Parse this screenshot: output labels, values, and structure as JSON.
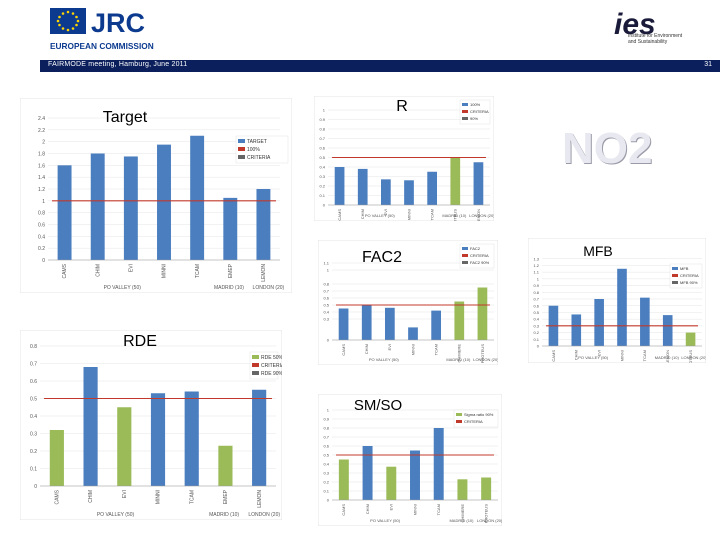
{
  "header": {
    "org_name": "EUROPEAN COMMISSION",
    "jrc": "JRC",
    "ies_mark": "ies",
    "ies_subtitle": "Institute for Environment and Sustainability",
    "band_left": "FAIRMODE meeting, Hamburg, June 2011",
    "page_number": "31"
  },
  "overlay": {
    "pollutant": "NO2"
  },
  "chart_data": [
    {
      "id": "target",
      "type": "bar",
      "title": "Target",
      "categories": [
        "CAMS",
        "CHIM",
        "EVI",
        "MINNI",
        "TCAM",
        "EMEP",
        "LEMON"
      ],
      "values": [
        1.6,
        1.8,
        1.75,
        1.95,
        2.1,
        1.05,
        1.2
      ],
      "bar_colors": [
        "#4a7ebf",
        "#4a7ebf",
        "#4a7ebf",
        "#4a7ebf",
        "#4a7ebf",
        "#4a7ebf",
        "#4a7ebf"
      ],
      "criteria": 1.0,
      "legend": [
        "TARGET",
        "100%",
        "CRITERIA"
      ],
      "yticks": [
        "0",
        "0.2",
        "0.4",
        "0.6",
        "0.8",
        "1",
        "1.2",
        "1.4",
        "1.6",
        "1.8",
        "2",
        "2.2",
        "2.4"
      ],
      "group_labels": [
        "PO VALLEY (50)",
        "MADRID (10)",
        "LONDON (20)"
      ],
      "ylim": [
        0,
        2.4
      ]
    },
    {
      "id": "r",
      "type": "bar",
      "title": "R",
      "categories": [
        "CAMS",
        "CHIM",
        "EVI",
        "MINNI",
        "TCAM",
        "PROTEUS",
        "LEMON"
      ],
      "values": [
        0.4,
        0.38,
        0.27,
        0.26,
        0.35,
        0.5,
        0.45
      ],
      "bar_colors": [
        "#4a7ebf",
        "#4a7ebf",
        "#4a7ebf",
        "#4a7ebf",
        "#4a7ebf",
        "#9bbb59",
        "#4a7ebf"
      ],
      "criteria": 0.5,
      "legend": [
        "100%",
        "CRITERIA",
        "90%"
      ],
      "yticks": [
        "0",
        "0.1",
        "0.2",
        "0.3",
        "0.4",
        "0.5",
        "0.6",
        "0.7",
        "0.8",
        "0.9",
        "1"
      ],
      "group_labels": [
        "PO VALLEY (50)",
        "MADRID (10)",
        "LONDON (20)"
      ],
      "ylim": [
        0,
        1
      ]
    },
    {
      "id": "fac2",
      "type": "bar",
      "title": "FAC2",
      "categories": [
        "CAMS",
        "CHIM",
        "EVI",
        "MINNI",
        "TCAM",
        "CHIMERE",
        "PROTEUS"
      ],
      "values": [
        0.45,
        0.5,
        0.46,
        0.18,
        0.42,
        0.55,
        0.75
      ],
      "bar_colors": [
        "#4a7ebf",
        "#4a7ebf",
        "#4a7ebf",
        "#4a7ebf",
        "#4a7ebf",
        "#9bbb59",
        "#9bbb59"
      ],
      "criteria": 0.5,
      "legend": [
        "FAC2",
        "CRITERIA",
        "FAC2 90%"
      ],
      "yticks": [
        "0",
        "0.3",
        "0.4",
        "0.5",
        "0.6",
        "0.7",
        "0.8",
        "1",
        "1.1"
      ],
      "group_labels": [
        "PO VALLEY (50)",
        "MADRID (10)",
        "LONDON (20)"
      ],
      "ylim": [
        0,
        1.2
      ]
    },
    {
      "id": "mfb",
      "type": "bar",
      "title": "MFB",
      "categories": [
        "CAMS",
        "CHIM",
        "EVI",
        "MINNI",
        "TCAM",
        "LEMON",
        "PROTEUS"
      ],
      "values": [
        0.6,
        0.47,
        0.7,
        1.15,
        0.72,
        0.46,
        0.2
      ],
      "bar_colors": [
        "#4a7ebf",
        "#4a7ebf",
        "#4a7ebf",
        "#4a7ebf",
        "#4a7ebf",
        "#4a7ebf",
        "#9bbb59"
      ],
      "criteria": 0.3,
      "legend": [
        "MFB",
        "CRITERIA",
        "MFB 90%"
      ],
      "yticks": [
        "0",
        "0.1",
        "0.2",
        "0.3",
        "0.4",
        "0.5",
        "0.6",
        "0.7",
        "0.8",
        "0.9",
        "1",
        "1.1",
        "1.2",
        "1.3"
      ],
      "group_labels": [
        "PO VALLEY (50)",
        "MADRID (10)",
        "LONDON (20)"
      ],
      "ylim": [
        0,
        1.4
      ]
    },
    {
      "id": "rde",
      "type": "bar",
      "title": "RDE",
      "categories": [
        "CAMS",
        "CHIM",
        "EVI",
        "MINNI",
        "TCAM",
        "EMEP",
        "LEMON"
      ],
      "values": [
        0.32,
        0.68,
        0.45,
        0.53,
        0.54,
        0.23,
        0.55
      ],
      "bar_colors": [
        "#9bbb59",
        "#4a7ebf",
        "#9bbb59",
        "#4a7ebf",
        "#4a7ebf",
        "#9bbb59",
        "#4a7ebf"
      ],
      "criteria": 0.5,
      "legend": [
        "RDE 50%",
        "CRITERIA",
        "RDE 90%"
      ],
      "yticks": [
        "0",
        "0.1",
        "0.2",
        "0.3",
        "0.4",
        "0.5",
        "0.6",
        "0.7",
        "0.8"
      ],
      "group_labels": [
        "PO VALLEY (50)",
        "MADRID (10)",
        "LONDON (20)"
      ],
      "ylim": [
        0,
        0.8
      ]
    },
    {
      "id": "smso",
      "type": "bar",
      "title": "SM/SO",
      "categories": [
        "CAMS",
        "CHIM",
        "EVI",
        "MINNI",
        "TCAM",
        "CHIMERE",
        "PROTEUS"
      ],
      "values": [
        0.45,
        0.6,
        0.37,
        0.55,
        0.8,
        0.23,
        0.25
      ],
      "bar_colors": [
        "#9bbb59",
        "#4a7ebf",
        "#9bbb59",
        "#4a7ebf",
        "#4a7ebf",
        "#9bbb59",
        "#9bbb59"
      ],
      "criteria": 0.5,
      "legend": [
        "Sigma ratio 90%",
        "CRITERIA"
      ],
      "yticks": [
        "0",
        "0.1",
        "0.2",
        "0.3",
        "0.4",
        "0.5",
        "0.6",
        "0.7",
        "0.8",
        "0.9",
        "1"
      ],
      "group_labels": [
        "PO VALLEY (50)",
        "MADRID (10)",
        "LONDON (20)"
      ],
      "ylim": [
        0,
        1
      ]
    }
  ]
}
